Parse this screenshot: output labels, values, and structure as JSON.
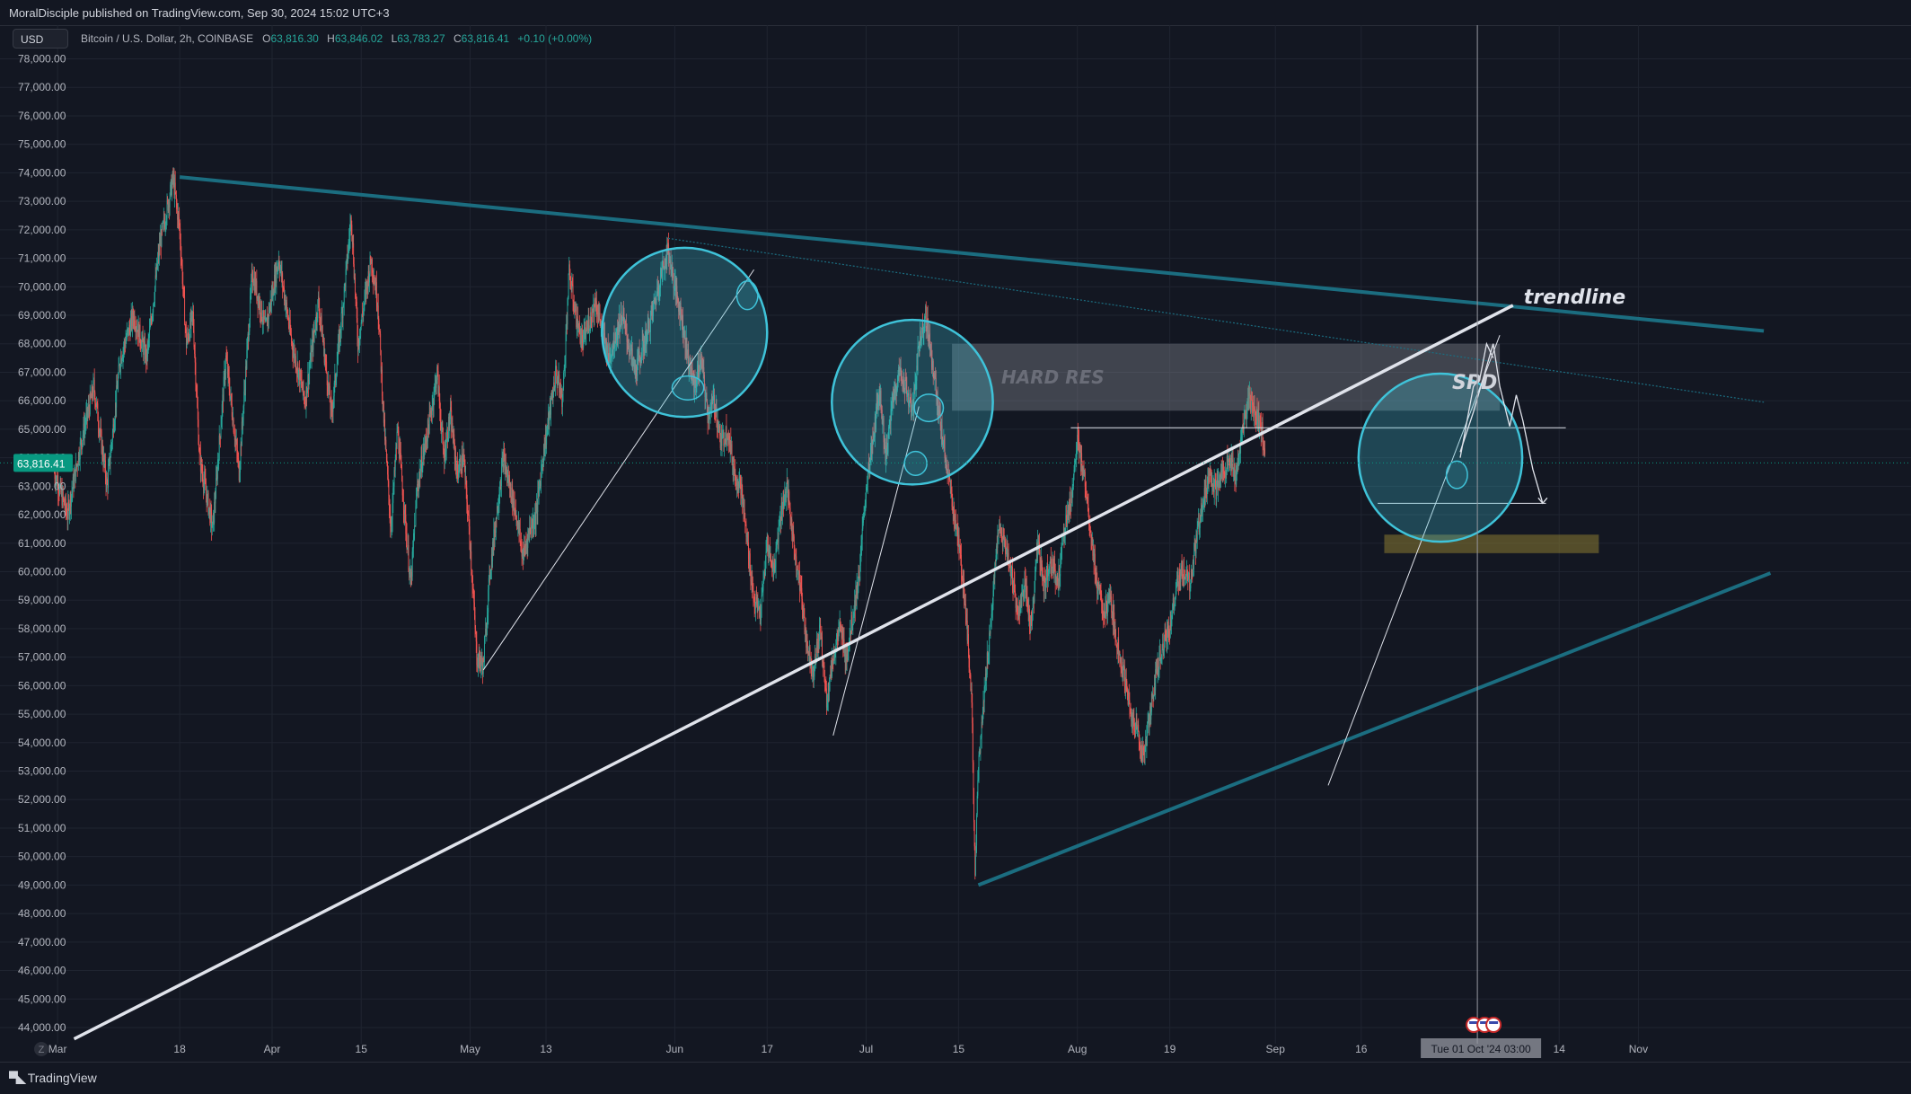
{
  "header": {
    "published": "MoralDisciple published on TradingView.com, Sep 30, 2024 15:02 UTC+3",
    "currency": "USD",
    "symbol": "Bitcoin / U.S. Dollar, 2h, COINBASE",
    "ohlc": {
      "o_label": "O",
      "o": "63,816.30",
      "h_label": "H",
      "h": "63,846.02",
      "l_label": "L",
      "l": "63,783.27",
      "c_label": "C",
      "c": "63,816.41",
      "change": "+0.10 (+0.00%)"
    }
  },
  "footer": {
    "brand": "TradingView",
    "scale_icon": "Z"
  },
  "colors": {
    "background": "#131722",
    "bull": "#26a69a",
    "bear": "#ef5350",
    "trendline_teal": "#1b6d80",
    "circle": "#3fc3d9",
    "white": "#e0e3eb",
    "hard_res": "#9598a1",
    "support_zone": "#8a7a32",
    "price_badge": "#089981"
  },
  "chart_data": {
    "type": "candlestick",
    "title": "Bitcoin / U.S. Dollar, 2h, COINBASE",
    "ylim": [
      43500,
      78500
    ],
    "y_ticks": [
      44000,
      45000,
      46000,
      47000,
      48000,
      49000,
      50000,
      51000,
      52000,
      53000,
      54000,
      55000,
      56000,
      57000,
      58000,
      59000,
      60000,
      61000,
      62000,
      63000,
      64000,
      65000,
      66000,
      67000,
      68000,
      69000,
      70000,
      71000,
      72000,
      73000,
      74000,
      75000,
      76000,
      77000,
      78000
    ],
    "y_tick_labels": [
      "44,000.00",
      "45,000.00",
      "46,000.00",
      "47,000.00",
      "48,000.00",
      "49,000.00",
      "50,000.00",
      "51,000.00",
      "52,000.00",
      "53,000.00",
      "54,000.00",
      "55,000.00",
      "56,000.00",
      "57,000.00",
      "58,000.00",
      "59,000.00",
      "60,000.00",
      "61,000.00",
      "62,000.00",
      "63,000.00",
      "64,000.00",
      "65,000.00",
      "66,000.00",
      "67,000.00",
      "68,000.00",
      "69,000.00",
      "70,000.00",
      "71,000.00",
      "72,000.00",
      "73,000.00",
      "74,000.00",
      "75,000.00",
      "76,000.00",
      "77,000.00",
      "78,000.00"
    ],
    "x_ticks": [
      "Mar",
      "18",
      "Apr",
      "15",
      "May",
      "13",
      "Jun",
      "17",
      "Jul",
      "15",
      "Aug",
      "19",
      "Sep",
      "16",
      "14",
      "Nov"
    ],
    "x_tick_days": [
      -1.5,
      17,
      31,
      44.5,
      61,
      72.5,
      92,
      106,
      121,
      135,
      153,
      167,
      183,
      196,
      226,
      238
    ],
    "last_price": 63816.41,
    "last_price_label": "63,816.41",
    "crosshair_label": "Tue 01 Oct '24   03:00",
    "crosshair_day": 213.6,
    "price_path": [
      [
        -2,
        63500
      ],
      [
        0,
        62000
      ],
      [
        2,
        64500
      ],
      [
        4,
        66500
      ],
      [
        6,
        63000
      ],
      [
        8,
        67500
      ],
      [
        10,
        69000
      ],
      [
        12,
        67500
      ],
      [
        14,
        71500
      ],
      [
        16,
        73800
      ],
      [
        17,
        72000
      ],
      [
        18,
        68000
      ],
      [
        19,
        69000
      ],
      [
        20,
        64000
      ],
      [
        22,
        61500
      ],
      [
        24,
        67500
      ],
      [
        26,
        63500
      ],
      [
        28,
        70500
      ],
      [
        30,
        68500
      ],
      [
        32,
        71000
      ],
      [
        34,
        68000
      ],
      [
        36,
        66000
      ],
      [
        38,
        69500
      ],
      [
        40,
        65500
      ],
      [
        42,
        70000
      ],
      [
        43,
        72500
      ],
      [
        44,
        68000
      ],
      [
        46,
        71000
      ],
      [
        47,
        69500
      ],
      [
        48,
        65000
      ],
      [
        49,
        61500
      ],
      [
        50,
        65000
      ],
      [
        52,
        59500
      ],
      [
        53,
        63000
      ],
      [
        55,
        65500
      ],
      [
        56,
        67000
      ],
      [
        57,
        64000
      ],
      [
        58,
        65500
      ],
      [
        59,
        63500
      ],
      [
        60,
        64000
      ],
      [
        61,
        61000
      ],
      [
        62,
        57000
      ],
      [
        63,
        56700
      ],
      [
        64,
        60000
      ],
      [
        65,
        62000
      ],
      [
        66,
        64000
      ],
      [
        67,
        63000
      ],
      [
        68,
        62000
      ],
      [
        69,
        60500
      ],
      [
        70,
        61500
      ],
      [
        71,
        62000
      ],
      [
        72,
        64000
      ],
      [
        73,
        65500
      ],
      [
        74,
        67000
      ],
      [
        75,
        66000
      ],
      [
        76,
        70500
      ],
      [
        77,
        69000
      ],
      [
        78,
        68000
      ],
      [
        80,
        69500
      ],
      [
        82,
        67500
      ],
      [
        84,
        69000
      ],
      [
        86,
        67000
      ],
      [
        88,
        68500
      ],
      [
        90,
        70500
      ],
      [
        91,
        71300
      ],
      [
        92,
        70000
      ],
      [
        93,
        69000
      ],
      [
        94,
        67500
      ],
      [
        95,
        66500
      ],
      [
        96,
        67500
      ],
      [
        97,
        65500
      ],
      [
        98,
        66000
      ],
      [
        99,
        64500
      ],
      [
        100,
        65000
      ],
      [
        101,
        63500
      ],
      [
        102,
        63000
      ],
      [
        103,
        61000
      ],
      [
        104,
        59000
      ],
      [
        105,
        58500
      ],
      [
        106,
        61000
      ],
      [
        107,
        60000
      ],
      [
        108,
        62000
      ],
      [
        109,
        63000
      ],
      [
        110,
        61000
      ],
      [
        111,
        59500
      ],
      [
        112,
        57500
      ],
      [
        113,
        56500
      ],
      [
        114,
        58000
      ],
      [
        115,
        55500
      ],
      [
        116,
        57000
      ],
      [
        117,
        58000
      ],
      [
        118,
        57000
      ],
      [
        119,
        58500
      ],
      [
        120,
        60000
      ],
      [
        121,
        63000
      ],
      [
        122,
        64500
      ],
      [
        123,
        66500
      ],
      [
        124,
        64000
      ],
      [
        125,
        66000
      ],
      [
        126,
        67000
      ],
      [
        127,
        66500
      ],
      [
        128,
        65500
      ],
      [
        129,
        68000
      ],
      [
        130,
        69000
      ],
      [
        131,
        67500
      ],
      [
        132,
        65500
      ],
      [
        133,
        64000
      ],
      [
        134,
        62500
      ],
      [
        135,
        61000
      ],
      [
        136,
        59000
      ],
      [
        137,
        55500
      ],
      [
        137.5,
        49500
      ],
      [
        138,
        53000
      ],
      [
        139,
        56000
      ],
      [
        140,
        58500
      ],
      [
        141,
        61500
      ],
      [
        142,
        61000
      ],
      [
        143,
        60000
      ],
      [
        144,
        58500
      ],
      [
        145,
        59500
      ],
      [
        146,
        58000
      ],
      [
        147,
        61000
      ],
      [
        148,
        59500
      ],
      [
        149,
        60500
      ],
      [
        150,
        59500
      ],
      [
        151,
        61500
      ],
      [
        152,
        62500
      ],
      [
        153,
        64500
      ],
      [
        154,
        63500
      ],
      [
        155,
        61500
      ],
      [
        156,
        59500
      ],
      [
        157,
        58500
      ],
      [
        158,
        59000
      ],
      [
        159,
        57500
      ],
      [
        160,
        56500
      ],
      [
        161,
        55000
      ],
      [
        162,
        54500
      ],
      [
        163,
        53500
      ],
      [
        164,
        55000
      ],
      [
        165,
        56500
      ],
      [
        166,
        57500
      ],
      [
        167,
        58000
      ],
      [
        168,
        59500
      ],
      [
        169,
        60000
      ],
      [
        170,
        59500
      ],
      [
        171,
        61000
      ],
      [
        172,
        62500
      ],
      [
        173,
        63500
      ],
      [
        174,
        62800
      ],
      [
        175,
        63500
      ],
      [
        176,
        64000
      ],
      [
        177,
        63200
      ],
      [
        178,
        65000
      ],
      [
        179,
        66000
      ],
      [
        180,
        65500
      ],
      [
        181,
        65000
      ],
      [
        181.5,
        63800
      ]
    ],
    "annotations": {
      "upper_trendline": {
        "from": [
          17,
          73850
        ],
        "to": [
          257,
          68450
        ]
      },
      "upper_trendline_dotted": {
        "from": [
          91,
          71700
        ],
        "to": [
          257,
          65950
        ]
      },
      "lower_channel": {
        "from": [
          138,
          49000
        ],
        "to": [
          258,
          59950
        ]
      },
      "main_trendline": {
        "from": [
          1,
          43600
        ],
        "to": [
          219,
          69350
        ],
        "label": "trendline"
      },
      "hard_res": {
        "label": "HARD RES",
        "x1": 134,
        "x2": 217,
        "y1": 65650,
        "y2": 68000
      },
      "spd": {
        "label": "SPD",
        "x": 212.5,
        "y": 66700
      },
      "support_zone": {
        "x1": 199.5,
        "x2": 232,
        "y1": 60650,
        "y2": 61300
      },
      "resistance_line": {
        "x1": 152,
        "x2": 227,
        "y": 65050
      },
      "target_line": {
        "x1": 198.5,
        "x2": 224,
        "y": 62400
      },
      "circles": [
        {
          "cx": 93.5,
          "cy": 68400,
          "rx": 12.5,
          "ry": 2970
        },
        {
          "cx": 128,
          "cy": 65950,
          "rx": 12.2,
          "ry": 2890
        },
        {
          "cx": 208,
          "cy": 64000,
          "rx": 12.4,
          "ry": 2950
        }
      ],
      "small_ellipses": [
        {
          "cx": 94,
          "cy": 66450,
          "rx": 2.4,
          "ry": 420
        },
        {
          "cx": 103,
          "cy": 69700,
          "rx": 1.6,
          "ry": 500
        },
        {
          "cx": 130.5,
          "cy": 65750,
          "rx": 2.2,
          "ry": 480
        },
        {
          "cx": 128.5,
          "cy": 63800,
          "rx": 1.7,
          "ry": 420
        },
        {
          "cx": 210.5,
          "cy": 63400,
          "rx": 1.6,
          "ry": 480
        }
      ],
      "thin_trendlines": [
        {
          "from": [
            63,
            56550
          ],
          "to": [
            104,
            70600
          ]
        },
        {
          "from": [
            116,
            54250
          ],
          "to": [
            129,
            65800
          ]
        },
        {
          "from": [
            191,
            52500
          ],
          "to": [
            217,
            68300
          ]
        }
      ],
      "projection_path": [
        [
          211,
          64200
        ],
        [
          213,
          65600
        ],
        [
          214.5,
          66800
        ],
        [
          216,
          68000
        ],
        [
          217,
          66500
        ],
        [
          218.5,
          65100
        ],
        [
          219.5,
          66200
        ],
        [
          220.5,
          65300
        ],
        [
          222,
          63600
        ],
        [
          223.5,
          62400
        ]
      ],
      "projection_path_2": [
        [
          211,
          64000
        ],
        [
          213,
          66500
        ],
        [
          214,
          66800
        ],
        [
          215,
          68000
        ],
        [
          216,
          67500
        ]
      ]
    }
  }
}
